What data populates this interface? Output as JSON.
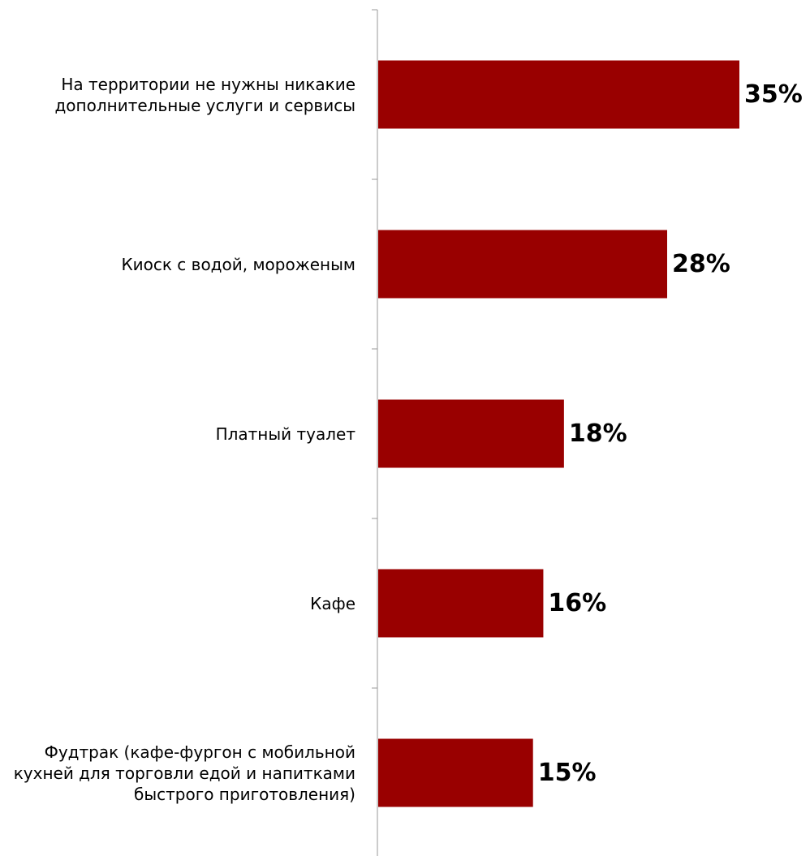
{
  "chart_data": {
    "type": "bar",
    "orientation": "horizontal",
    "categories": [
      "На территории не нужны никакие дополнительные услуги и сервисы",
      "Киоск с водой, мороженым",
      "Платный туалет",
      "Кафе",
      "Фудтрак (кафе-фургон с мобильной кухней для торговли едой и напитками быстрого приготовления)"
    ],
    "category_lines": [
      [
        "На территории не нужны никакие",
        "дополнительные услуги и сервисы"
      ],
      [
        "Киоск с водой, мороженым"
      ],
      [
        "Платный туалет"
      ],
      [
        "Кафе"
      ],
      [
        "Фудтрак (кафе-фургон с мобильной",
        "кухней для торговли едой и напитками",
        "быстрого приготовления)"
      ]
    ],
    "values": [
      35,
      28,
      18,
      16,
      15
    ],
    "value_labels": [
      "35%",
      "28%",
      "18%",
      "16%",
      "15%"
    ],
    "title": "",
    "xlabel": "",
    "ylabel": "",
    "xlim": [
      0,
      35
    ],
    "grid": false,
    "legend": "none",
    "bar_color": "#990000"
  }
}
